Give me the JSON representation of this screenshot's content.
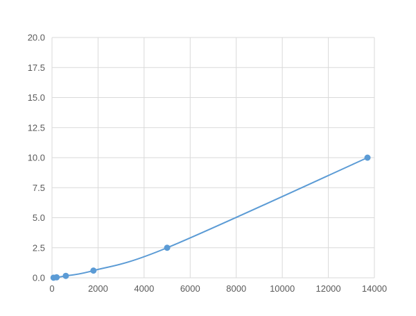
{
  "chart_data": {
    "type": "scatter",
    "title": "",
    "xlabel": "",
    "ylabel": "",
    "xlim": [
      0,
      14000
    ],
    "ylim": [
      0,
      20
    ],
    "x_ticks": [
      "0",
      "2000",
      "4000",
      "6000",
      "8000",
      "10000",
      "12000",
      "14000"
    ],
    "y_ticks": [
      "0.0",
      "2.5",
      "5.0",
      "7.5",
      "10.0",
      "12.5",
      "15.0",
      "17.5",
      "20.0"
    ],
    "grid": true,
    "legend": "none",
    "line": "smooth",
    "color": "#5B9BD5",
    "series": [
      {
        "x": [
          67,
          200,
          600,
          1800,
          5000,
          13700
        ],
        "y": [
          0.01,
          0.04,
          0.16,
          0.6,
          2.5,
          10.0
        ]
      }
    ]
  }
}
